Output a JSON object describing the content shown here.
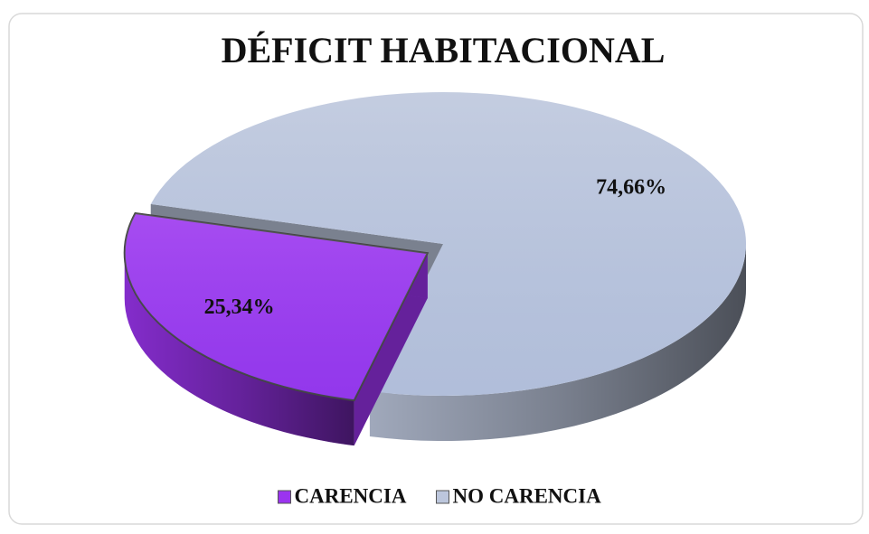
{
  "chart_data": {
    "type": "pie3d",
    "title": "DÉFICIT HABITACIONAL",
    "categories": [
      "CARENCIA",
      "NO CARENCIA"
    ],
    "values": [
      25.34,
      74.66
    ],
    "value_labels": [
      "25,34%",
      "74,66%"
    ],
    "colors": [
      "#9b34ef",
      "#bcc6dc"
    ],
    "legend": "bottom"
  }
}
